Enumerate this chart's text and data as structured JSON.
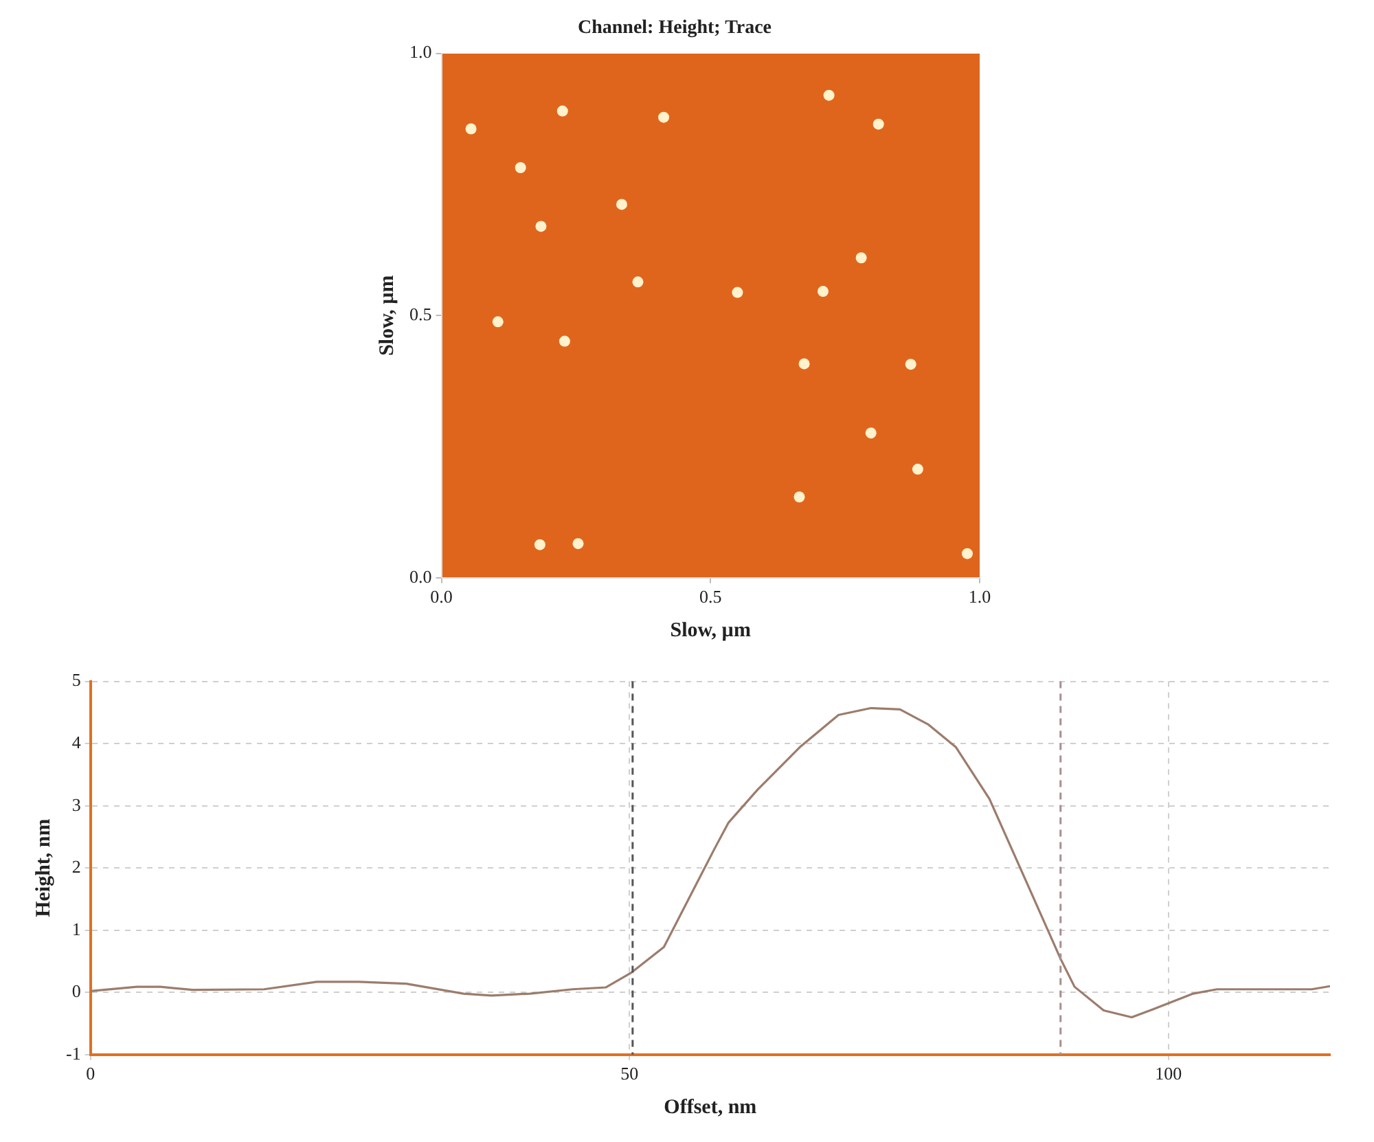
{
  "chart_data": [
    {
      "type": "scatter",
      "title": "Channel: Height; Trace",
      "xlabel": "Slow, µm",
      "ylabel": "Slow, µm",
      "color": "#fff2cc",
      "marker": "circle",
      "x": [
        0.335,
        0.185,
        0.78,
        0.225,
        0.812,
        0.72,
        0.055,
        0.872,
        0.254,
        0.674,
        0.365,
        0.229,
        0.105,
        0.885,
        0.977,
        0.665,
        0.183,
        0.413,
        0.147,
        0.798,
        0.55,
        0.709
      ],
      "values": [
        0.712,
        0.67,
        0.61,
        0.89,
        0.865,
        0.92,
        0.856,
        0.407,
        0.065,
        0.408,
        0.564,
        0.451,
        0.488,
        0.207,
        0.046,
        0.154,
        0.063,
        0.878,
        0.782,
        0.276,
        0.544,
        0.546
      ],
      "xlim": [
        0,
        1
      ],
      "ylim": [
        0,
        1
      ],
      "xticks": [
        {
          "value": 0,
          "label": "0.0"
        },
        {
          "value": 0.5,
          "label": "0.5"
        },
        {
          "value": 1,
          "label": "1.0"
        }
      ],
      "yticks": [
        {
          "value": 0,
          "label": "0.0"
        },
        {
          "value": 0.5,
          "label": "0.5"
        },
        {
          "value": 1,
          "label": "1.0"
        }
      ]
    },
    {
      "type": "line",
      "xlabel": "Offset, nm",
      "ylabel": "Height, nm",
      "color": "#9c7c6c",
      "marker": "none",
      "line_style": "solid",
      "grid": true,
      "x": [
        0,
        4.3,
        6.5,
        9.5,
        16.1,
        21.0,
        24.9,
        29.3,
        34.6,
        37.2,
        40.8,
        44.7,
        47.8,
        50.2,
        53.2,
        57.9,
        59.2,
        61.9,
        65.8,
        69.4,
        72.4,
        75.1,
        77.7,
        80.3,
        83.4,
        86.9,
        90.0,
        91.3,
        94.0,
        96.6,
        98.6,
        102.3,
        104.5,
        113.3,
        115
      ],
      "values": [
        0.02,
        0.09,
        0.09,
        0.04,
        0.05,
        0.17,
        0.17,
        0.14,
        -0.02,
        -0.05,
        -0.02,
        0.05,
        0.08,
        0.32,
        0.73,
        2.31,
        2.73,
        3.26,
        3.94,
        4.46,
        4.57,
        4.55,
        4.31,
        3.94,
        3.11,
        1.75,
        0.54,
        0.09,
        -0.29,
        -0.4,
        -0.27,
        -0.02,
        0.05,
        0.05,
        0.1
      ],
      "xlim": [
        0,
        115
      ],
      "ylim": [
        -1,
        5
      ],
      "xticks": [
        0,
        50,
        100
      ],
      "yticks": [
        -1,
        0,
        1,
        2,
        3,
        4,
        5
      ],
      "ref_lines": [
        {
          "axis": "x",
          "value": 50.3,
          "color": "#555555",
          "line_style": "dashed"
        },
        {
          "axis": "x",
          "value": 90,
          "color": "#a89090",
          "line_style": "dashed"
        }
      ]
    }
  ]
}
